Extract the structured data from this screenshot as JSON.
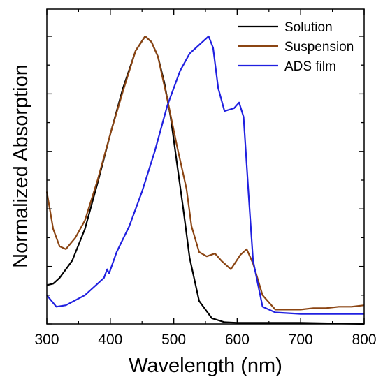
{
  "chart_data": {
    "type": "line",
    "xlabel": "Wavelength (nm)",
    "ylabel": "Normalized Absorption",
    "xlim": [
      300,
      800
    ],
    "ylim": [
      0,
      1.0
    ],
    "x_ticks": [
      "300",
      "400",
      "500",
      "600",
      "700",
      "800"
    ],
    "y_ticks_shown": false,
    "grid": false,
    "legend_position": "top-right",
    "series": [
      {
        "name": "Solution",
        "color": "#000000",
        "x": [
          300,
          310,
          320,
          340,
          360,
          380,
          400,
          420,
          440,
          455,
          465,
          475,
          485,
          495,
          505,
          515,
          525,
          540,
          560,
          580,
          600,
          650,
          700,
          750,
          800
        ],
        "y": [
          0.135,
          0.14,
          0.16,
          0.22,
          0.33,
          0.49,
          0.66,
          0.82,
          0.95,
          1.0,
          0.98,
          0.93,
          0.84,
          0.72,
          0.56,
          0.4,
          0.23,
          0.08,
          0.02,
          0.006,
          0.004,
          0.004,
          0.004,
          0.002,
          0.0
        ]
      },
      {
        "name": "Suspension",
        "color": "#8B4513",
        "x": [
          300,
          310,
          320,
          330,
          345,
          360,
          380,
          400,
          420,
          440,
          455,
          465,
          475,
          490,
          505,
          520,
          528,
          540,
          552,
          565,
          575,
          590,
          605,
          615,
          625,
          640,
          660,
          680,
          700,
          720,
          740,
          760,
          780,
          800
        ],
        "y": [
          0.46,
          0.33,
          0.27,
          0.26,
          0.3,
          0.36,
          0.5,
          0.66,
          0.81,
          0.95,
          1.0,
          0.98,
          0.93,
          0.78,
          0.62,
          0.47,
          0.34,
          0.25,
          0.235,
          0.245,
          0.22,
          0.19,
          0.24,
          0.26,
          0.21,
          0.1,
          0.05,
          0.05,
          0.05,
          0.055,
          0.055,
          0.06,
          0.06,
          0.065
        ]
      },
      {
        "name": "ADS film",
        "color": "#2020E0",
        "x": [
          300,
          315,
          330,
          360,
          390,
          395,
          398,
          410,
          430,
          450,
          470,
          490,
          510,
          525,
          535,
          545,
          555,
          562,
          570,
          580,
          595,
          603,
          610,
          618,
          625,
          640,
          660,
          700,
          740,
          780,
          800
        ],
        "y": [
          0.1,
          0.06,
          0.065,
          0.1,
          0.16,
          0.19,
          0.175,
          0.25,
          0.34,
          0.46,
          0.6,
          0.76,
          0.88,
          0.94,
          0.96,
          0.98,
          1.0,
          0.96,
          0.82,
          0.74,
          0.75,
          0.77,
          0.72,
          0.45,
          0.22,
          0.06,
          0.04,
          0.035,
          0.035,
          0.035,
          0.035
        ]
      }
    ]
  }
}
